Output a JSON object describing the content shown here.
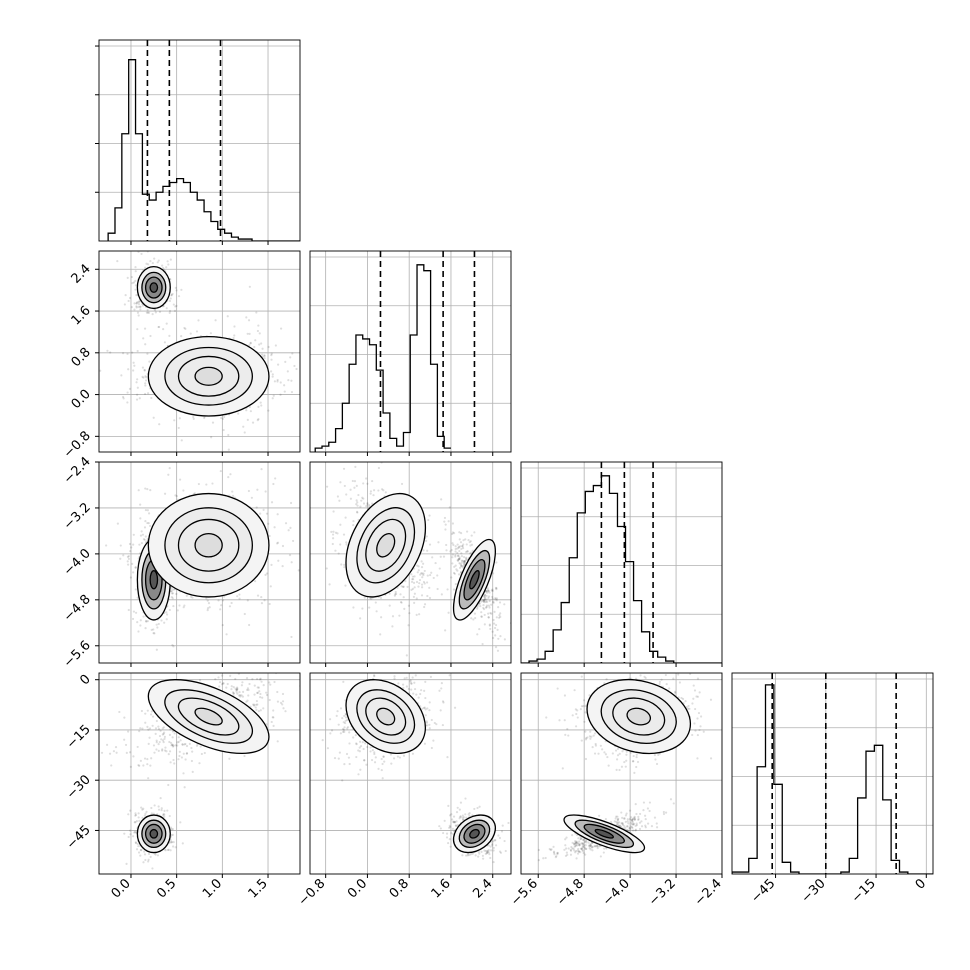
{
  "chart_data": {
    "type": "corner",
    "dims": 4,
    "params": [
      {
        "range": [
          -0.35,
          1.85
        ],
        "ticks": [
          0.0,
          0.5,
          1.0,
          1.5
        ],
        "tick_labels": [
          "0.0",
          "0.5",
          "1.0",
          "1.5"
        ],
        "quantiles": [
          0.18,
          0.42,
          0.98
        ]
      },
      {
        "range": [
          -1.1,
          2.75
        ],
        "ticks": [
          -0.8,
          0.0,
          0.8,
          1.6,
          2.4
        ],
        "tick_labels": [
          "−0.8",
          "0.0",
          "0.8",
          "1.6",
          "2.4"
        ],
        "quantiles": [
          0.25,
          1.45,
          2.05
        ]
      },
      {
        "range": [
          -5.9,
          -2.4
        ],
        "ticks": [
          -5.6,
          -4.8,
          -4.0,
          -3.2,
          -2.4
        ],
        "tick_labels": [
          "−5.6",
          "−4.8",
          "−4.0",
          "−3.2",
          "−2.4"
        ],
        "quantiles": [
          -4.5,
          -4.1,
          -3.6
        ]
      },
      {
        "range": [
          -58,
          2
        ],
        "ticks": [
          -45,
          -30,
          -15,
          0
        ],
        "tick_labels": [
          "−45",
          "−30",
          "−15",
          "0"
        ],
        "quantiles": [
          -46,
          -30,
          -9
        ]
      }
    ],
    "grid": true,
    "histograms": [
      {
        "edges_start": -0.25,
        "bin_width": 0.075,
        "counts": [
          0.04,
          0.17,
          0.55,
          0.93,
          0.55,
          0.24,
          0.21,
          0.25,
          0.28,
          0.3,
          0.32,
          0.3,
          0.25,
          0.21,
          0.15,
          0.1,
          0.06,
          0.04,
          0.02,
          0.01,
          0.01,
          0.0,
          0.0,
          0.0,
          0.0,
          0.0,
          0.0,
          0.0,
          0.0
        ],
        "ymax": 1.0
      },
      {
        "edges_start": -1.0,
        "bin_width": 0.13,
        "counts": [
          0.02,
          0.03,
          0.05,
          0.12,
          0.25,
          0.45,
          0.6,
          0.58,
          0.55,
          0.42,
          0.2,
          0.07,
          0.03,
          0.1,
          0.6,
          0.96,
          0.93,
          0.45,
          0.08,
          0.02
        ],
        "ymax": 1.0
      },
      {
        "edges_start": -5.9,
        "bin_width": 0.14,
        "counts": [
          0.0,
          0.01,
          0.02,
          0.06,
          0.17,
          0.31,
          0.54,
          0.77,
          0.88,
          0.91,
          0.96,
          0.87,
          0.7,
          0.52,
          0.32,
          0.16,
          0.06,
          0.03,
          0.01,
          0.0,
          0.0,
          0.0,
          0.0,
          0.0,
          0.0
        ],
        "ymax": 1.0
      },
      {
        "edges_start": -58,
        "bin_width": 2.5,
        "counts": [
          0.01,
          0.01,
          0.08,
          0.55,
          0.97,
          0.46,
          0.06,
          0.01,
          0.0,
          0.0,
          0.0,
          0.0,
          0.0,
          0.01,
          0.08,
          0.39,
          0.63,
          0.66,
          0.38,
          0.07,
          0.01,
          0.0,
          0.0,
          0.0
        ],
        "ymax": 1.0
      }
    ],
    "modes": [
      {
        "weight": 0.4,
        "mean": [
          0.25,
          2.05,
          -4.45,
          -46
        ],
        "sd": [
          0.09,
          0.2,
          0.35,
          2.8
        ]
      },
      {
        "weight": 0.6,
        "mean": [
          0.85,
          0.35,
          -3.85,
          -11
        ],
        "sd": [
          0.33,
          0.38,
          0.45,
          5.5
        ]
      }
    ]
  }
}
